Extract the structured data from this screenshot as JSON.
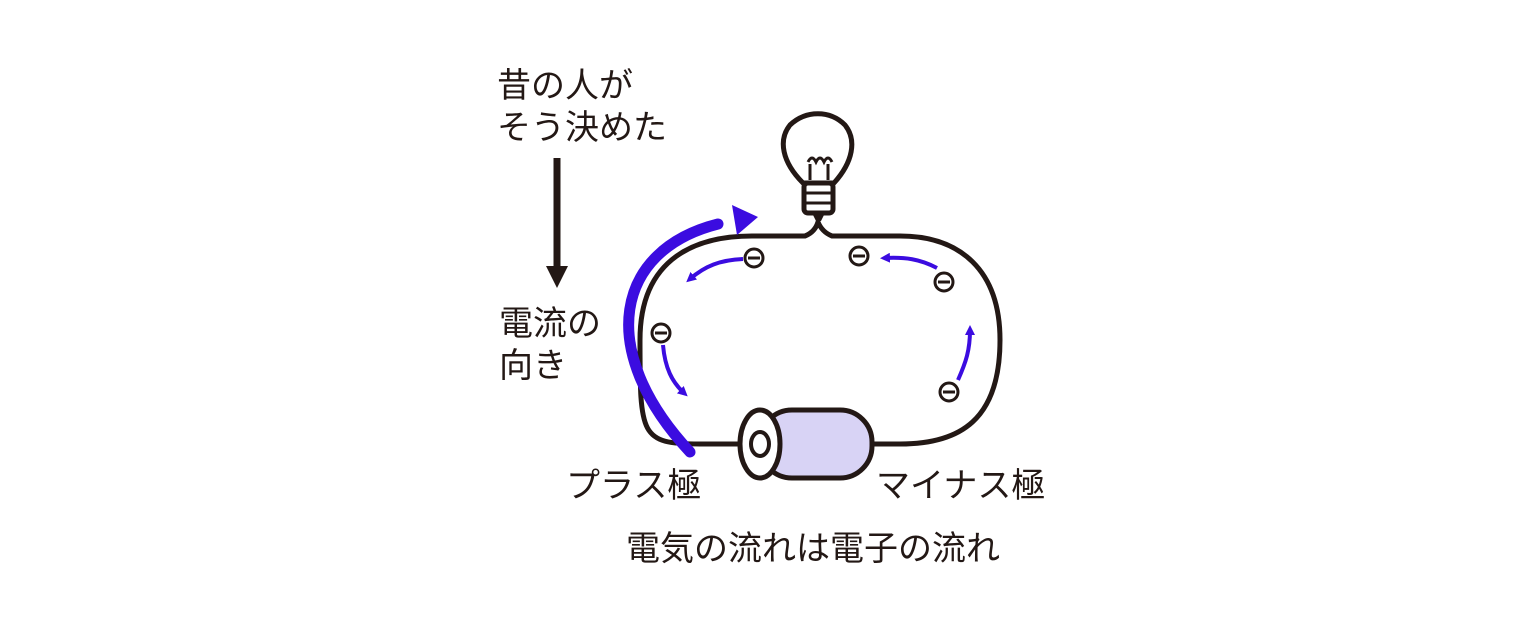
{
  "labels": {
    "note_line1": "昔の人が",
    "note_line2": "そう決めた",
    "current_line1": "電流の",
    "current_line2": "向き",
    "plus_pole": "プラス極",
    "minus_pole": "マイナス極",
    "caption": "電気の流れは電子の流れ"
  },
  "electron_symbol": "minus-in-circle",
  "colors": {
    "ink": "#231815",
    "current_arrow": "#3b0ce0",
    "battery_body": "#d8d3f5",
    "background": "#ffffff"
  }
}
